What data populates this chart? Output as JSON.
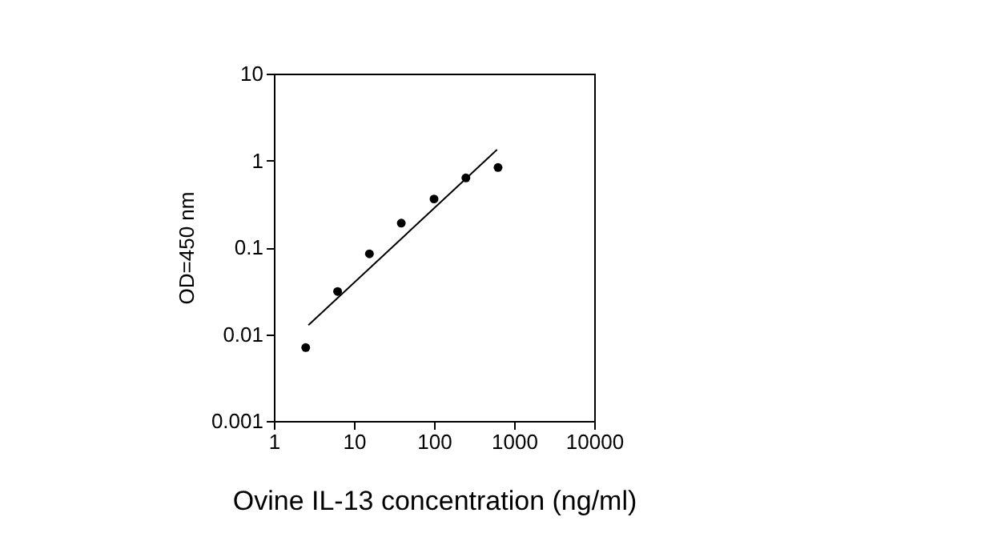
{
  "chart_data": {
    "type": "scatter",
    "xlabel": "Ovine IL-13 concentration (ng/ml)",
    "ylabel": "OD=450 nm",
    "log": "xy",
    "grid": false,
    "xlim": [
      1,
      10000
    ],
    "xticks": [
      1,
      10,
      100,
      1000,
      10000
    ],
    "ylim": [
      0.001,
      10
    ],
    "yticks": [
      0.001,
      0.01,
      0.1,
      1,
      10
    ],
    "x": [
      2.5,
      6.25,
      15.6,
      39,
      100,
      250,
      630
    ],
    "series": [
      {
        "color": "#000000",
        "marker": "circle",
        "values": [
          0.007,
          0.031,
          0.084,
          0.19,
          0.36,
          0.63,
          0.83
        ]
      },
      {
        "type": "line",
        "marker": "none",
        "color": "#000000",
        "x": [
          2.7,
          612
        ],
        "values": [
          0.0127,
          1.33
        ]
      }
    ]
  }
}
